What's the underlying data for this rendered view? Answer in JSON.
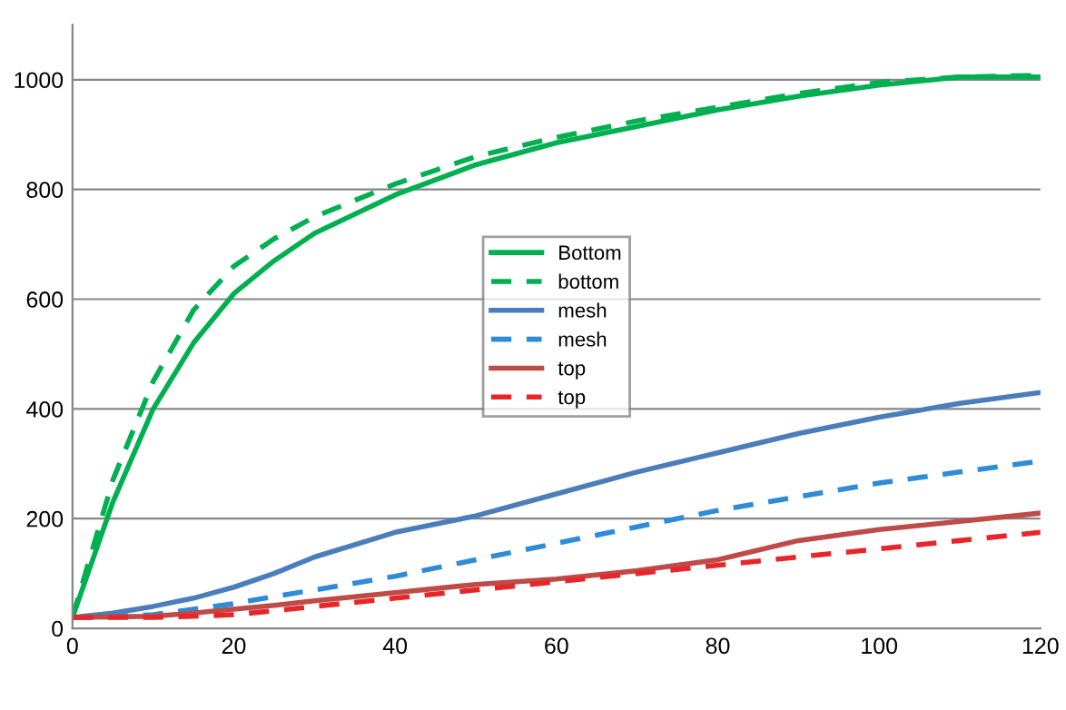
{
  "chart_data": {
    "type": "line",
    "x": [
      0,
      5,
      10,
      15,
      20,
      25,
      30,
      40,
      50,
      60,
      70,
      80,
      90,
      100,
      110,
      120
    ],
    "series": [
      {
        "name": "Bottom",
        "color": "#00b050",
        "line_style": "solid",
        "values": [
          20,
          230,
          400,
          520,
          610,
          670,
          720,
          790,
          845,
          885,
          915,
          945,
          970,
          990,
          1005,
          1005
        ]
      },
      {
        "name": "bottom",
        "color": "#00b050",
        "line_style": "dashed",
        "values": [
          20,
          270,
          450,
          580,
          660,
          710,
          750,
          810,
          860,
          895,
          925,
          950,
          975,
          995,
          1005,
          1008
        ]
      },
      {
        "name": "mesh",
        "color": "#4a7ebb",
        "line_style": "solid",
        "values": [
          20,
          28,
          40,
          55,
          75,
          100,
          130,
          175,
          205,
          245,
          285,
          320,
          355,
          385,
          410,
          430
        ]
      },
      {
        "name": "mesh",
        "color": "#2e8bd8",
        "line_style": "dashed",
        "values": [
          20,
          22,
          25,
          35,
          45,
          58,
          70,
          95,
          125,
          155,
          185,
          215,
          240,
          265,
          285,
          305
        ]
      },
      {
        "name": "top",
        "color": "#be4b48",
        "line_style": "solid",
        "values": [
          20,
          21,
          22,
          28,
          35,
          42,
          50,
          65,
          80,
          90,
          105,
          125,
          160,
          180,
          195,
          210
        ]
      },
      {
        "name": "top",
        "color": "#e8262a",
        "line_style": "dashed",
        "values": [
          20,
          20,
          20,
          22,
          25,
          32,
          40,
          55,
          70,
          85,
          100,
          115,
          130,
          145,
          160,
          175
        ]
      }
    ],
    "xlim": [
      0,
      120
    ],
    "xticks": [
      0,
      20,
      40,
      60,
      80,
      100,
      120
    ],
    "ylim": [
      0,
      1100
    ],
    "yticks": [
      0,
      200,
      400,
      600,
      800,
      1000
    ],
    "grid": "y",
    "legend": "center",
    "marker": "none"
  }
}
